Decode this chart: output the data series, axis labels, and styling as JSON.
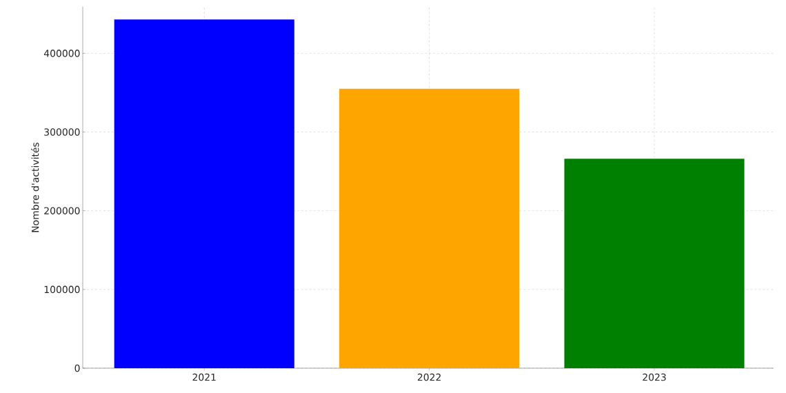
{
  "chart_data": {
    "type": "bar",
    "ylabel": "Nombre d'activités",
    "categories": [
      "2021",
      "2022",
      "2023"
    ],
    "values": [
      443000,
      355000,
      266000
    ],
    "colors": [
      "#0000ff",
      "#ffa500",
      "#008000"
    ],
    "ylim": [
      0,
      459000
    ],
    "yticks": [
      0,
      100000,
      200000,
      300000,
      400000
    ],
    "grid": true
  }
}
